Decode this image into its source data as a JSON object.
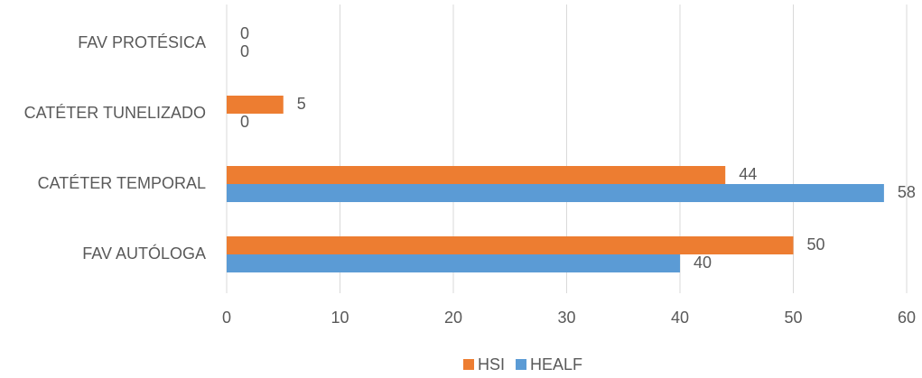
{
  "chart_data": {
    "type": "hbar",
    "categories": [
      "FAV PROTÉSICA",
      "CATÉTER TUNELIZADO",
      "CATÉTER TEMPORAL",
      "FAV AUTÓLOGA"
    ],
    "series": [
      {
        "name": "HSI",
        "color": "#ED7D31",
        "values": [
          0,
          5,
          44,
          50
        ]
      },
      {
        "name": "HEALF",
        "color": "#5B9BD5",
        "values": [
          0,
          0,
          58,
          40
        ]
      }
    ],
    "xlim": [
      0,
      60
    ],
    "xticks": [
      0,
      10,
      20,
      30,
      40,
      50,
      60
    ],
    "grid": true,
    "legend": "bottom"
  }
}
